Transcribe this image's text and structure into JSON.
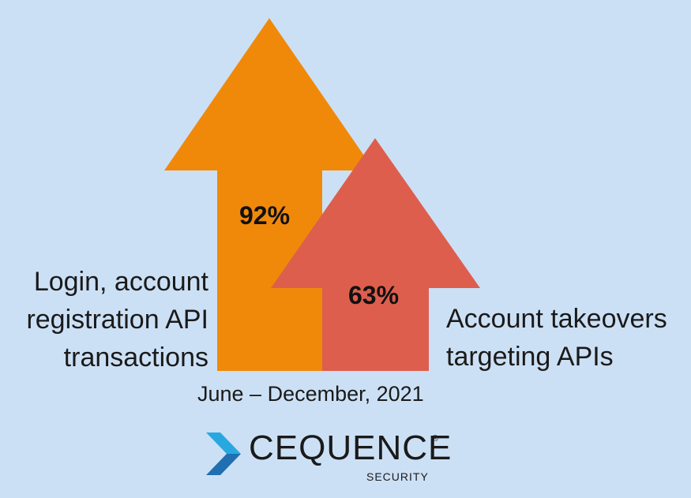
{
  "arrows": [
    {
      "value_label": "92%",
      "color": "#f0890a"
    },
    {
      "value_label": "63%",
      "color": "#de5e4d"
    }
  ],
  "labels": {
    "left": [
      "Login, account",
      "registration API",
      "transactions"
    ],
    "right": [
      "Account takeovers",
      "targeting APIs"
    ]
  },
  "date_range": "June – December, 2021",
  "logo": {
    "wordmark": "CEQUENCE",
    "registered": "®",
    "subtitle": "SECURITY",
    "icon": "chevron-icon",
    "icon_colors": [
      "#1f6fb2",
      "#29a8e0"
    ]
  }
}
